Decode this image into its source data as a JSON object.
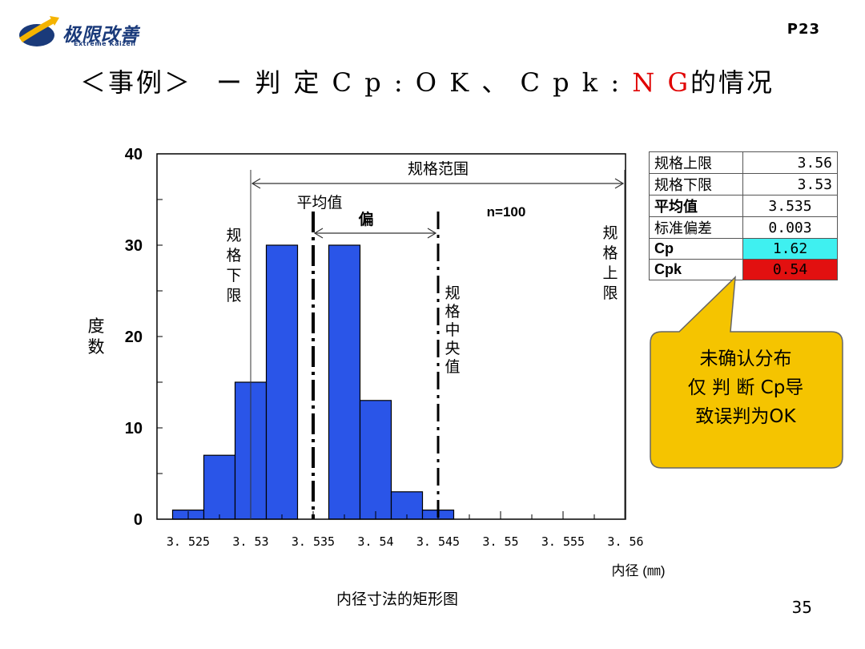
{
  "header": {
    "logo_text": "极限改善",
    "logo_subtitle": "Extreme Kaizen",
    "page_id": "P23"
  },
  "title": {
    "prefix": "＜事例＞",
    "main": "ー 判 定 C p : O K 、 C p k :",
    "ng": "N G",
    "suffix": "的情况"
  },
  "chart_data": {
    "type": "bar",
    "title": "",
    "xlabel": "内径 (㎜)",
    "ylabel": "度数",
    "caption": "内径寸法的矩形图",
    "x_ticks": [
      "3.525",
      "3.53",
      "3.535",
      "3.54",
      "3.545",
      "3.55",
      "3.555",
      "3.56"
    ],
    "x_tick_values": [
      3.525,
      3.53,
      3.535,
      3.54,
      3.545,
      3.55,
      3.555,
      3.56
    ],
    "xlim": [
      3.5225,
      3.56
    ],
    "ylim": [
      0,
      40
    ],
    "y_ticks": [
      "0",
      "10",
      "20",
      "30",
      "40"
    ],
    "bin_width": 0.0025,
    "bins": [
      {
        "center": 3.525,
        "value": 1
      },
      {
        "center": 3.5275,
        "value": 7
      },
      {
        "center": 3.53,
        "value": 15
      },
      {
        "center": 3.5325,
        "value": 30
      },
      {
        "center": 3.5375,
        "value": 30
      },
      {
        "center": 3.54,
        "value": 13
      },
      {
        "center": 3.5425,
        "value": 3
      },
      {
        "center": 3.545,
        "value": 1
      }
    ],
    "bar_color": "#2a55e8",
    "lower_spec": 3.53,
    "upper_spec": 3.56,
    "mean": 3.535,
    "spec_center": 3.545,
    "annotations": {
      "spec_range": "规格范围",
      "mean_label": "平均值",
      "bias_label": "偏",
      "n_label": "n=100",
      "lsl_label": "规格下限",
      "usl_label": "规格上限",
      "center_label": "规格中央值"
    }
  },
  "stats_table": {
    "rows": [
      {
        "label": "规格上限",
        "value": "3.56"
      },
      {
        "label": "规格下限",
        "value": "3.53"
      },
      {
        "label": "平均值",
        "value": "3.535"
      },
      {
        "label": "标准偏差",
        "value": "0.003"
      },
      {
        "label": "Cp",
        "value": "1.62"
      },
      {
        "label": "Cpk",
        "value": "0.54"
      }
    ],
    "cp_color": "#3ff0f0",
    "cpk_color": "#e21010"
  },
  "callout": {
    "line1": "未确认分布",
    "line2": "仅 判 断 Cp导",
    "line3": "致误判为OK",
    "color": "#f5c400"
  },
  "footer": {
    "page_number": "35"
  }
}
